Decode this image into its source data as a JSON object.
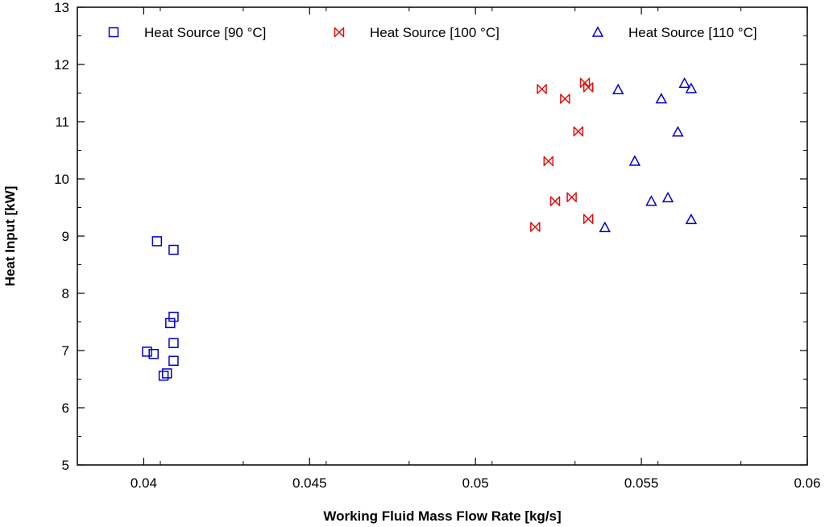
{
  "chart_data": {
    "type": "scatter",
    "title": "",
    "xlabel": "Working Fluid Mass Flow Rate [kg/s]",
    "ylabel": "Heat Input [kW]",
    "xlim": [
      0.038,
      0.06
    ],
    "ylim": [
      5,
      13
    ],
    "xticks": [
      0.04,
      0.045,
      0.05,
      0.055,
      0.06
    ],
    "xtick_labels": [
      "0.04",
      "0.045",
      "0.05",
      "0.055",
      "0.06"
    ],
    "yticks": [
      5,
      6,
      7,
      8,
      9,
      10,
      11,
      12,
      13
    ],
    "ytick_labels": [
      "5",
      "6",
      "7",
      "8",
      "9",
      "10",
      "11",
      "12",
      "13"
    ],
    "grid": false,
    "legend_position": "top",
    "series": [
      {
        "name": "Heat Source [90 °C]",
        "marker": "square",
        "color": "#0000cc",
        "x": [
          0.0404,
          0.0409,
          0.0409,
          0.0408,
          0.0409,
          0.0401,
          0.0403,
          0.0409,
          0.0407,
          0.0406
        ],
        "y": [
          8.91,
          8.76,
          7.59,
          7.48,
          7.13,
          6.98,
          6.94,
          6.82,
          6.6,
          6.56
        ]
      },
      {
        "name": "Heat Source [100 °C]",
        "marker": "bowtie",
        "color": "#e01010",
        "x": [
          0.0533,
          0.0534,
          0.052,
          0.0527,
          0.0531,
          0.0522,
          0.0529,
          0.0524,
          0.0534,
          0.0518
        ],
        "y": [
          11.68,
          11.6,
          11.57,
          11.4,
          10.83,
          10.31,
          9.68,
          9.61,
          9.3,
          9.16
        ]
      },
      {
        "name": "Heat Source [110 °C]",
        "marker": "triangle",
        "color": "#0000cc",
        "x": [
          0.0563,
          0.0565,
          0.0543,
          0.0556,
          0.0561,
          0.0548,
          0.0558,
          0.0553,
          0.0565,
          0.0539
        ],
        "y": [
          11.67,
          11.58,
          11.56,
          11.4,
          10.82,
          10.31,
          9.67,
          9.61,
          9.29,
          9.15
        ]
      }
    ]
  }
}
